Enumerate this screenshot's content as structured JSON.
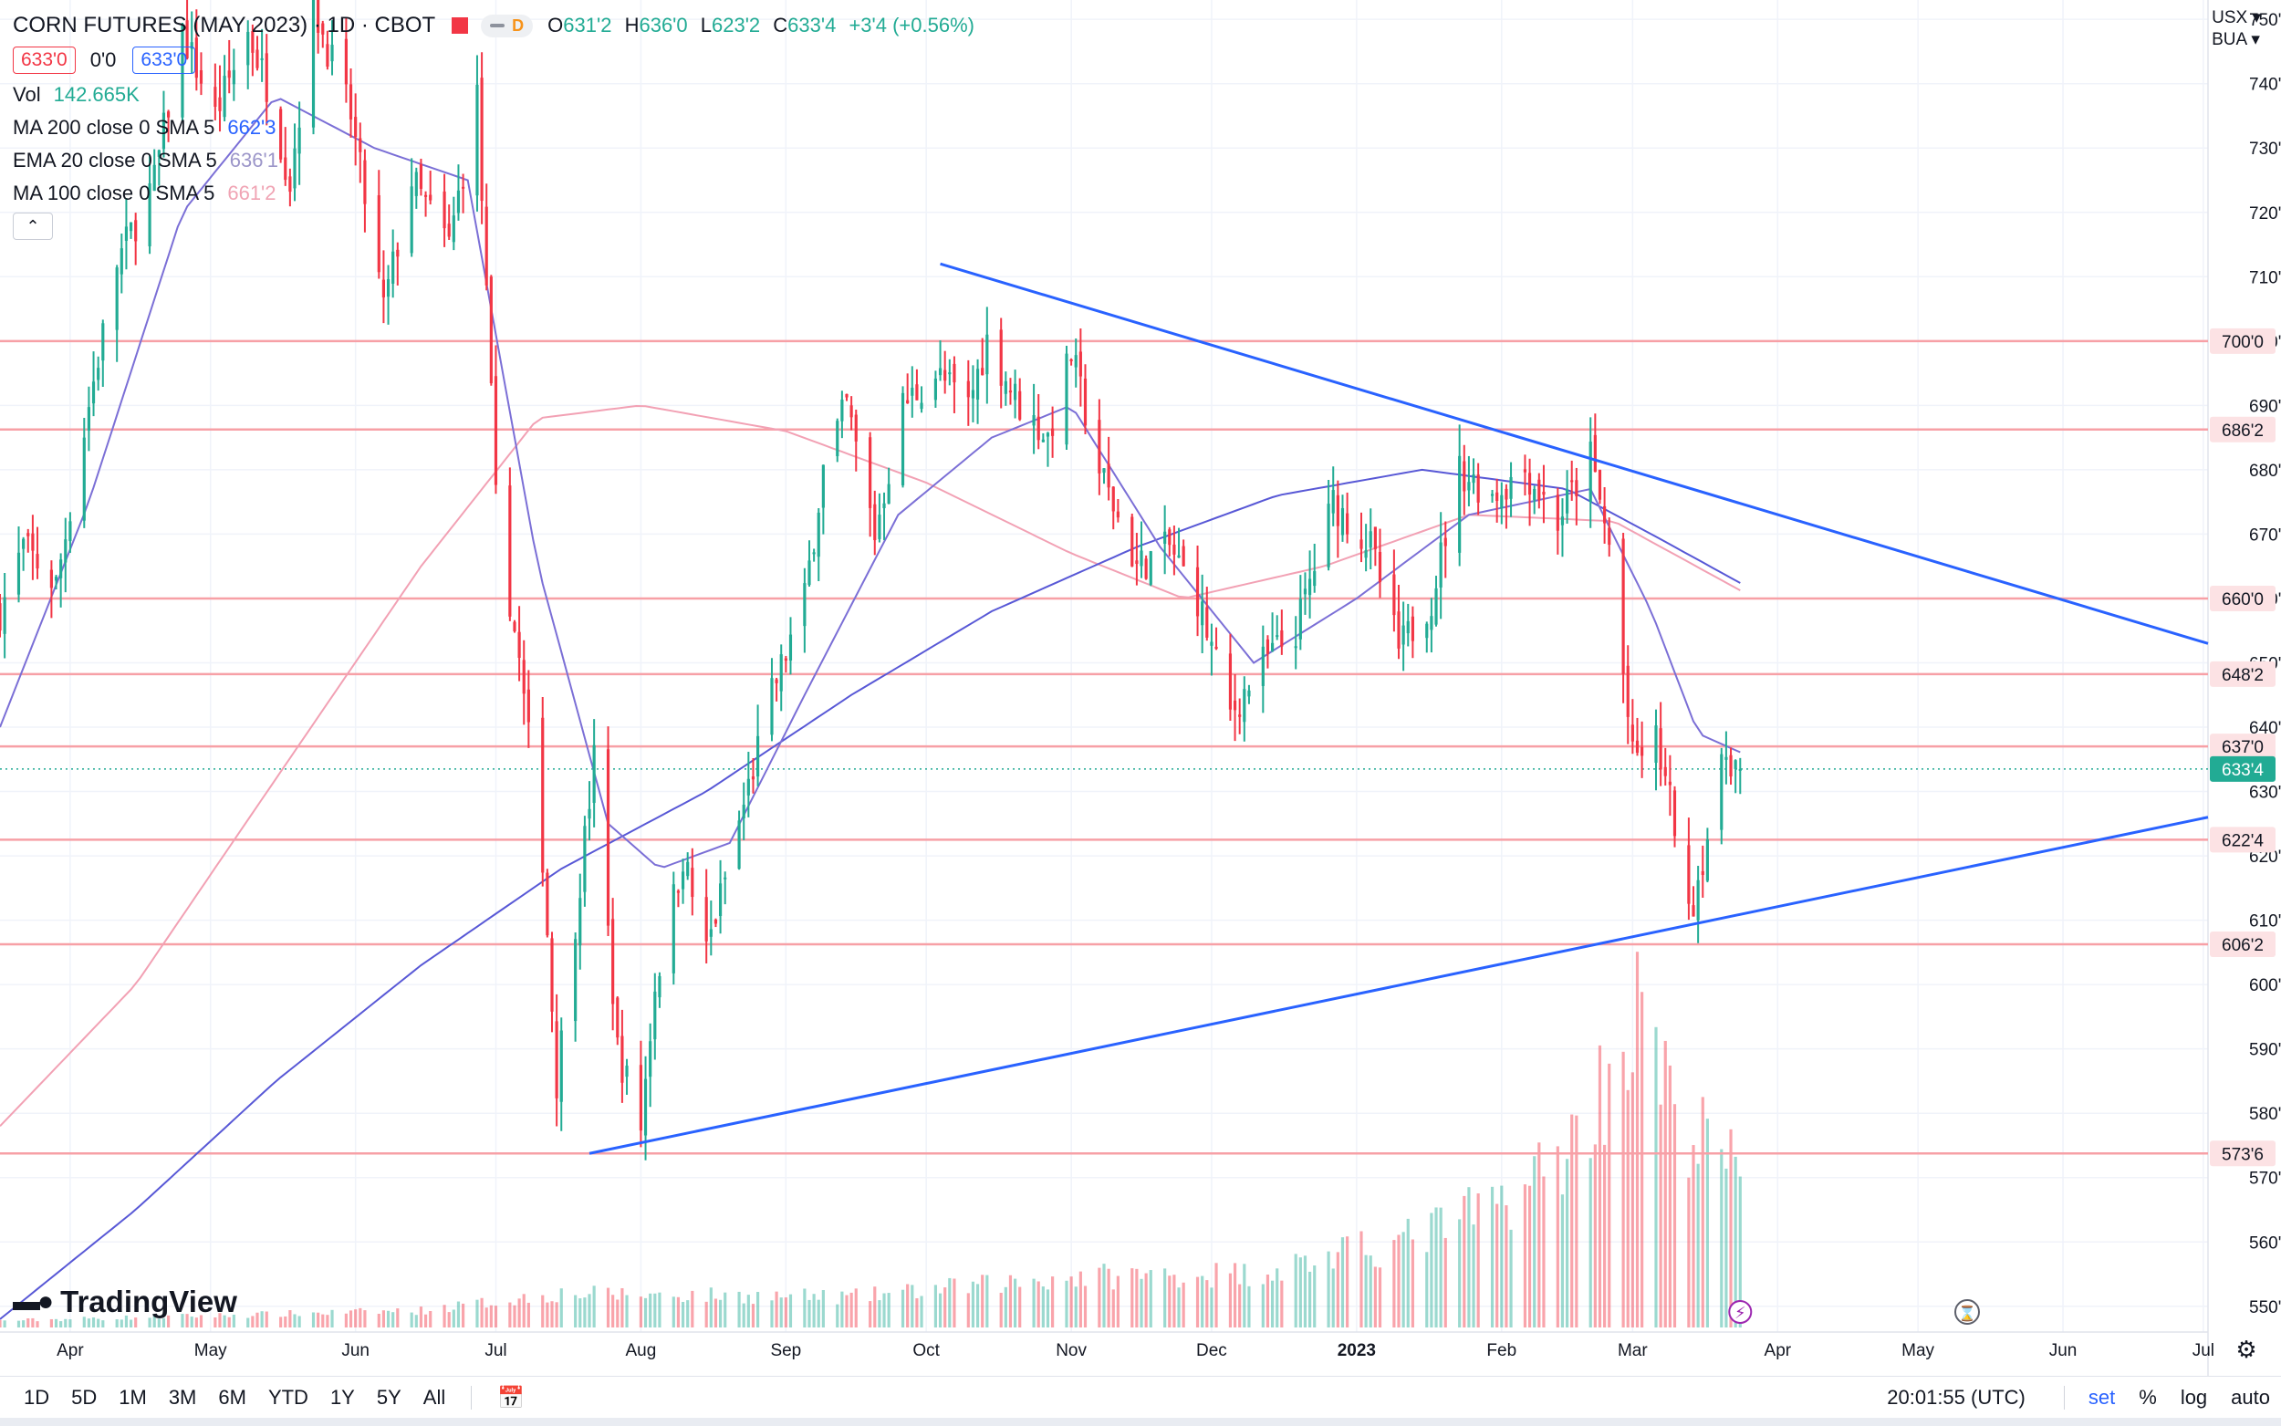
{
  "header": {
    "title": "CORN FUTURES (MAY 2023) · 1D · CBOT",
    "interval_badge": "D",
    "ohlc": {
      "o_label": "O",
      "o": "631'2",
      "h_label": "H",
      "h": "636'0",
      "l_label": "L",
      "l": "623'2",
      "c_label": "C",
      "c": "633'4",
      "change": "+3'4 (+0.56%)"
    },
    "bid": "633'0",
    "spread": "0'0",
    "ask": "633'0"
  },
  "indicators": {
    "vol": {
      "name": "Vol",
      "value": "142.665K"
    },
    "ma200": {
      "name": "MA 200 close 0 SMA 5",
      "value": "662'3"
    },
    "ema20": {
      "name": "EMA 20 close 0 SMA 5",
      "value": "636'1"
    },
    "ma100": {
      "name": "MA 100 close 0 SMA 5",
      "value": "661'2"
    },
    "collapse_icon": "chevron-up-icon"
  },
  "top_right": {
    "currency": "USX",
    "unit": "BUA"
  },
  "logo": {
    "text": "TradingView"
  },
  "bottom_bar": {
    "timeframes": [
      "1D",
      "5D",
      "1M",
      "3M",
      "6M",
      "YTD",
      "1Y",
      "5Y",
      "All"
    ],
    "clock": "20:01:55 (UTC)",
    "options": [
      "set",
      "%",
      "log",
      "auto"
    ]
  },
  "colors": {
    "up": "#22ab94",
    "down": "#f23645",
    "hline": "#f7a0a6",
    "trend": "#2962ff",
    "ema20": "#7b6fd6",
    "ma200": "#5858d6",
    "ma100": "#f2a1b4",
    "axis_text": "#131722"
  },
  "chart_data": {
    "type": "candlestick",
    "y_axis": {
      "min": 546,
      "max": 753,
      "ticks": [
        550,
        560,
        570,
        580,
        590,
        600,
        610,
        620,
        630,
        640,
        650,
        660,
        670,
        680,
        690,
        700,
        710,
        720,
        730,
        740,
        750
      ],
      "tick_labels": [
        "550'0",
        "560'0",
        "570'0",
        "580'0",
        "590'0",
        "600'0",
        "610'0",
        "620'0",
        "630'0",
        "640'0",
        "650'0",
        "660'0",
        "670'0",
        "680'0",
        "690'0",
        "700'0",
        "710'0",
        "720'0",
        "730'0",
        "740'0",
        "750'0"
      ]
    },
    "x_axis": {
      "range": [
        "2022-03-17",
        "2023-07-02"
      ],
      "ticks": [
        {
          "date": "2022-04-01",
          "label": "Apr"
        },
        {
          "date": "2022-05-01",
          "label": "May"
        },
        {
          "date": "2022-06-01",
          "label": "Jun"
        },
        {
          "date": "2022-07-01",
          "label": "Jul"
        },
        {
          "date": "2022-08-01",
          "label": "Aug"
        },
        {
          "date": "2022-09-01",
          "label": "Sep"
        },
        {
          "date": "2022-10-01",
          "label": "Oct"
        },
        {
          "date": "2022-11-01",
          "label": "Nov"
        },
        {
          "date": "2022-12-01",
          "label": "Dec"
        },
        {
          "date": "2023-01-01",
          "label": "2023"
        },
        {
          "date": "2023-02-01",
          "label": "Feb"
        },
        {
          "date": "2023-03-01",
          "label": "Mar"
        },
        {
          "date": "2023-04-01",
          "label": "Apr"
        },
        {
          "date": "2023-05-01",
          "label": "May"
        },
        {
          "date": "2023-06-01",
          "label": "Jun"
        },
        {
          "date": "2023-07-01",
          "label": "Jul"
        }
      ]
    },
    "price_path": [
      {
        "date": "2022-03-17",
        "value": 658
      },
      {
        "date": "2022-03-22",
        "value": 668
      },
      {
        "date": "2022-03-29",
        "value": 662
      },
      {
        "date": "2022-04-05",
        "value": 690
      },
      {
        "date": "2022-04-11",
        "value": 712
      },
      {
        "date": "2022-04-19",
        "value": 725
      },
      {
        "date": "2022-04-25",
        "value": 748
      },
      {
        "date": "2022-05-02",
        "value": 735
      },
      {
        "date": "2022-05-09",
        "value": 748
      },
      {
        "date": "2022-05-13",
        "value": 740
      },
      {
        "date": "2022-05-18",
        "value": 725
      },
      {
        "date": "2022-05-23",
        "value": 752
      },
      {
        "date": "2022-05-31",
        "value": 735
      },
      {
        "date": "2022-06-07",
        "value": 705
      },
      {
        "date": "2022-06-13",
        "value": 725
      },
      {
        "date": "2022-06-21",
        "value": 715
      },
      {
        "date": "2022-06-27",
        "value": 738
      },
      {
        "date": "2022-07-01",
        "value": 675
      },
      {
        "date": "2022-07-06",
        "value": 650
      },
      {
        "date": "2022-07-11",
        "value": 620
      },
      {
        "date": "2022-07-14",
        "value": 585
      },
      {
        "date": "2022-07-18",
        "value": 610
      },
      {
        "date": "2022-07-22",
        "value": 635
      },
      {
        "date": "2022-07-27",
        "value": 590
      },
      {
        "date": "2022-08-01",
        "value": 578
      },
      {
        "date": "2022-08-04",
        "value": 600
      },
      {
        "date": "2022-08-10",
        "value": 620
      },
      {
        "date": "2022-08-15",
        "value": 605
      },
      {
        "date": "2022-08-22",
        "value": 625
      },
      {
        "date": "2022-08-29",
        "value": 645
      },
      {
        "date": "2022-09-05",
        "value": 660
      },
      {
        "date": "2022-09-09",
        "value": 680
      },
      {
        "date": "2022-09-14",
        "value": 690
      },
      {
        "date": "2022-09-20",
        "value": 670
      },
      {
        "date": "2022-09-26",
        "value": 690
      },
      {
        "date": "2022-10-03",
        "value": 695
      },
      {
        "date": "2022-10-10",
        "value": 690
      },
      {
        "date": "2022-10-14",
        "value": 700
      },
      {
        "date": "2022-10-21",
        "value": 690
      },
      {
        "date": "2022-10-27",
        "value": 685
      },
      {
        "date": "2022-11-01",
        "value": 698
      },
      {
        "date": "2022-11-07",
        "value": 680
      },
      {
        "date": "2022-11-15",
        "value": 665
      },
      {
        "date": "2022-11-22",
        "value": 668
      },
      {
        "date": "2022-11-28",
        "value": 660
      },
      {
        "date": "2022-12-05",
        "value": 642
      },
      {
        "date": "2022-12-12",
        "value": 650
      },
      {
        "date": "2022-12-19",
        "value": 655
      },
      {
        "date": "2022-12-27",
        "value": 675
      },
      {
        "date": "2023-01-04",
        "value": 668
      },
      {
        "date": "2023-01-10",
        "value": 652
      },
      {
        "date": "2023-01-17",
        "value": 660
      },
      {
        "date": "2023-01-23",
        "value": 680
      },
      {
        "date": "2023-01-30",
        "value": 676
      },
      {
        "date": "2023-02-06",
        "value": 680
      },
      {
        "date": "2023-02-13",
        "value": 672
      },
      {
        "date": "2023-02-20",
        "value": 682
      },
      {
        "date": "2023-02-24",
        "value": 668
      },
      {
        "date": "2023-03-01",
        "value": 635
      },
      {
        "date": "2023-03-06",
        "value": 638
      },
      {
        "date": "2023-03-10",
        "value": 625
      },
      {
        "date": "2023-03-13",
        "value": 610
      },
      {
        "date": "2023-03-16",
        "value": 620
      },
      {
        "date": "2023-03-21",
        "value": 636
      },
      {
        "date": "2023-03-24",
        "value": 633.5
      }
    ],
    "volume_shape": [
      {
        "date": "2022-03-17",
        "rel": 0.02
      },
      {
        "date": "2022-06-15",
        "rel": 0.05
      },
      {
        "date": "2022-07-15",
        "rel": 0.1
      },
      {
        "date": "2022-09-15",
        "rel": 0.09
      },
      {
        "date": "2022-11-01",
        "rel": 0.15
      },
      {
        "date": "2022-12-10",
        "rel": 0.16
      },
      {
        "date": "2023-01-10",
        "rel": 0.25
      },
      {
        "date": "2023-02-01",
        "rel": 0.37
      },
      {
        "date": "2023-02-15",
        "rel": 0.52
      },
      {
        "date": "2023-02-24",
        "rel": 0.75
      },
      {
        "date": "2023-03-03",
        "rel": 0.95
      },
      {
        "date": "2023-03-10",
        "rel": 0.6
      },
      {
        "date": "2023-03-17",
        "rel": 0.55
      },
      {
        "date": "2023-03-24",
        "rel": 0.45
      }
    ],
    "horizontal_levels": [
      {
        "value": 700.0,
        "label": "700'0"
      },
      {
        "value": 686.25,
        "label": "686'2"
      },
      {
        "value": 660.0,
        "label": "660'0"
      },
      {
        "value": 648.25,
        "label": "648'2"
      },
      {
        "value": 637.0,
        "label": "637'0"
      },
      {
        "value": 622.5,
        "label": "622'4"
      },
      {
        "value": 606.25,
        "label": "606'2"
      },
      {
        "value": 573.75,
        "label": "573'6"
      }
    ],
    "current_price": {
      "value": 633.5,
      "label": "633'4"
    },
    "trendlines": [
      {
        "name": "",
        "from": {
          "date": "2022-10-04",
          "value": 712
        },
        "to": {
          "date": "2023-07-02",
          "value": 653
        }
      },
      {
        "name": "",
        "from": {
          "date": "2022-07-21",
          "value": 573.75
        },
        "to": {
          "date": "2023-07-02",
          "value": 626
        }
      }
    ],
    "moving_averages": {
      "ema20": [
        {
          "date": "2022-03-17",
          "value": 640
        },
        {
          "date": "2022-04-05",
          "value": 675
        },
        {
          "date": "2022-04-25",
          "value": 720
        },
        {
          "date": "2022-05-15",
          "value": 738
        },
        {
          "date": "2022-06-05",
          "value": 730
        },
        {
          "date": "2022-06-25",
          "value": 725
        },
        {
          "date": "2022-07-10",
          "value": 665
        },
        {
          "date": "2022-07-25",
          "value": 625
        },
        {
          "date": "2022-08-05",
          "value": 618
        },
        {
          "date": "2022-08-20",
          "value": 622
        },
        {
          "date": "2022-09-05",
          "value": 645
        },
        {
          "date": "2022-09-25",
          "value": 673
        },
        {
          "date": "2022-10-15",
          "value": 685
        },
        {
          "date": "2022-11-01",
          "value": 690
        },
        {
          "date": "2022-11-20",
          "value": 668
        },
        {
          "date": "2022-12-10",
          "value": 650
        },
        {
          "date": "2023-01-01",
          "value": 660
        },
        {
          "date": "2023-01-25",
          "value": 673
        },
        {
          "date": "2023-02-20",
          "value": 677
        },
        {
          "date": "2023-03-05",
          "value": 658
        },
        {
          "date": "2023-03-15",
          "value": 639
        },
        {
          "date": "2023-03-24",
          "value": 636.1
        }
      ],
      "ma200": [
        {
          "date": "2022-03-17",
          "value": 548
        },
        {
          "date": "2022-04-15",
          "value": 565
        },
        {
          "date": "2022-05-15",
          "value": 585
        },
        {
          "date": "2022-06-15",
          "value": 603
        },
        {
          "date": "2022-07-15",
          "value": 618
        },
        {
          "date": "2022-08-15",
          "value": 630
        },
        {
          "date": "2022-09-15",
          "value": 645
        },
        {
          "date": "2022-10-15",
          "value": 658
        },
        {
          "date": "2022-11-15",
          "value": 668
        },
        {
          "date": "2022-12-15",
          "value": 676
        },
        {
          "date": "2023-01-15",
          "value": 680
        },
        {
          "date": "2023-02-15",
          "value": 677
        },
        {
          "date": "2023-03-05",
          "value": 670
        },
        {
          "date": "2023-03-24",
          "value": 662.4
        }
      ],
      "ma100": [
        {
          "date": "2022-03-17",
          "value": 578
        },
        {
          "date": "2022-04-15",
          "value": 600
        },
        {
          "date": "2022-05-15",
          "value": 632
        },
        {
          "date": "2022-06-15",
          "value": 665
        },
        {
          "date": "2022-07-10",
          "value": 688
        },
        {
          "date": "2022-08-01",
          "value": 690
        },
        {
          "date": "2022-09-01",
          "value": 686
        },
        {
          "date": "2022-10-01",
          "value": 678
        },
        {
          "date": "2022-11-01",
          "value": 667
        },
        {
          "date": "2022-11-25",
          "value": 660
        },
        {
          "date": "2022-12-25",
          "value": 665
        },
        {
          "date": "2023-01-25",
          "value": 673
        },
        {
          "date": "2023-02-25",
          "value": 672
        },
        {
          "date": "2023-03-24",
          "value": 661.25
        }
      ]
    }
  }
}
